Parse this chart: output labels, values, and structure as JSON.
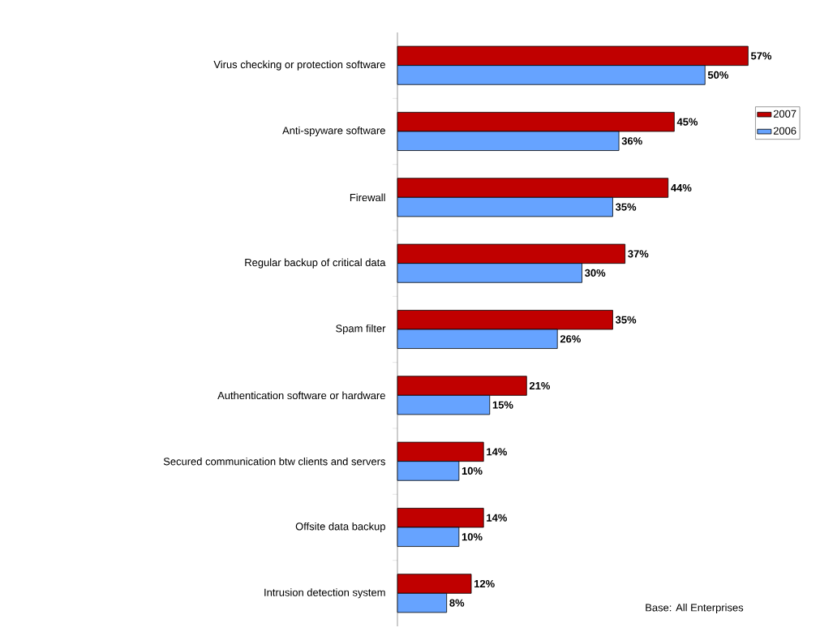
{
  "chart_data": {
    "type": "bar",
    "orientation": "horizontal",
    "categories": [
      "Virus checking or protection software",
      "Anti-spyware software",
      "Firewall",
      "Regular backup of critical data",
      "Spam filter",
      "Authentication software or hardware",
      "Secured communication btw clients and servers",
      "Offsite data backup",
      "Intrusion detection system"
    ],
    "series": [
      {
        "name": "2007",
        "color": "#c00000",
        "values": [
          57,
          45,
          44,
          37,
          35,
          21,
          14,
          14,
          12
        ],
        "value_labels": [
          "57%",
          "45%",
          "44%",
          "37%",
          "35%",
          "21%",
          "14%",
          "14%",
          "12%"
        ]
      },
      {
        "name": "2006",
        "color": "#66a3ff",
        "values": [
          50,
          36,
          35,
          30,
          26,
          15,
          10,
          10,
          8
        ],
        "value_labels": [
          "50%",
          "36%",
          "35%",
          "30%",
          "26%",
          "15%",
          "10%",
          "10%",
          "8%"
        ]
      }
    ],
    "xlim": [
      0,
      65
    ],
    "tick_labels": "y",
    "legend": "right",
    "grid": false,
    "annotations": [
      "Base: All Enterprises"
    ]
  }
}
